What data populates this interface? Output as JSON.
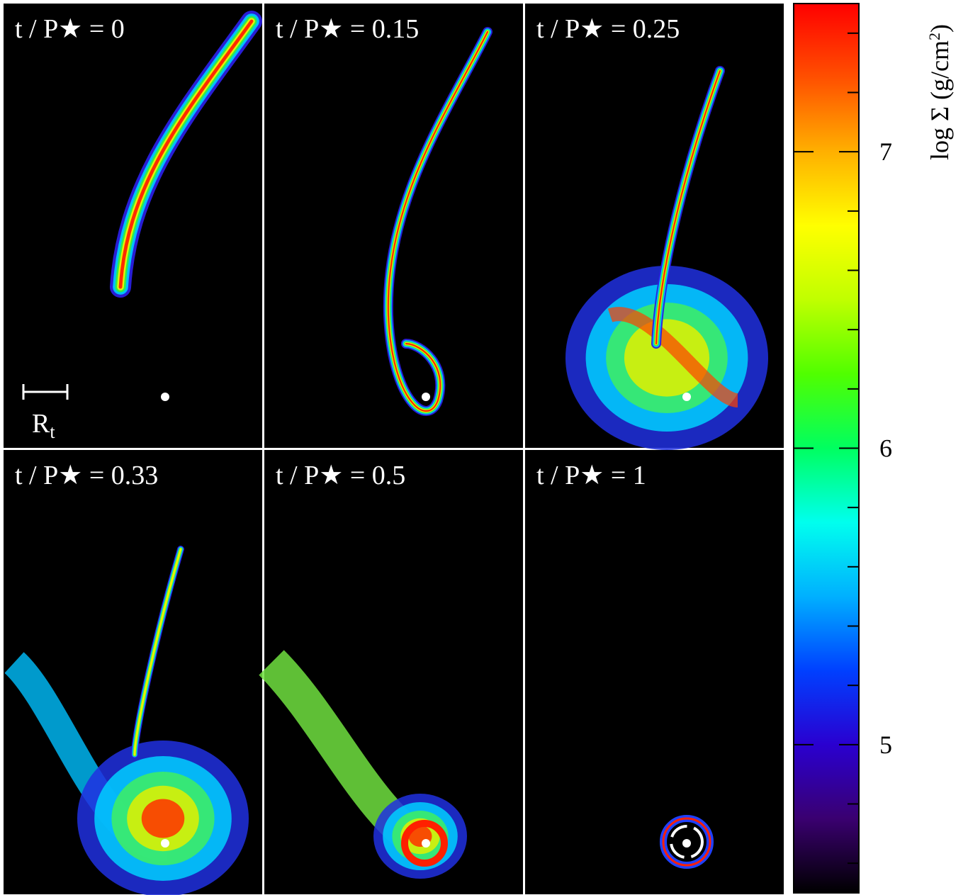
{
  "panels": [
    {
      "title": "t / P★ = 0"
    },
    {
      "title": "t / P★ = 0.15"
    },
    {
      "title": "t / P★ = 0.25"
    },
    {
      "title": "t / P★ = 0.33"
    },
    {
      "title": "t / P★ = 0.5"
    },
    {
      "title": "t / P★ = 1"
    }
  ],
  "scale_bar": {
    "label": "R",
    "subscript": "t"
  },
  "colorbar": {
    "label": "log Σ  (g/cm",
    "label_sup": "2",
    "label_end": ")",
    "lim": [
      4.5,
      7.5
    ],
    "ticks": [
      5,
      6,
      7
    ],
    "minor_ticks": [
      4.6,
      4.8,
      5.2,
      5.4,
      5.6,
      5.8,
      6.2,
      6.4,
      6.6,
      6.8,
      7.2,
      7.4
    ],
    "colormap": [
      "#000000",
      "#3a0070",
      "#2a00d0",
      "#0040ff",
      "#00b0ff",
      "#00ffee",
      "#00ff60",
      "#50ff00",
      "#c0ff00",
      "#ffff00",
      "#ffb000",
      "#ff5000",
      "#ff0000"
    ]
  }
}
